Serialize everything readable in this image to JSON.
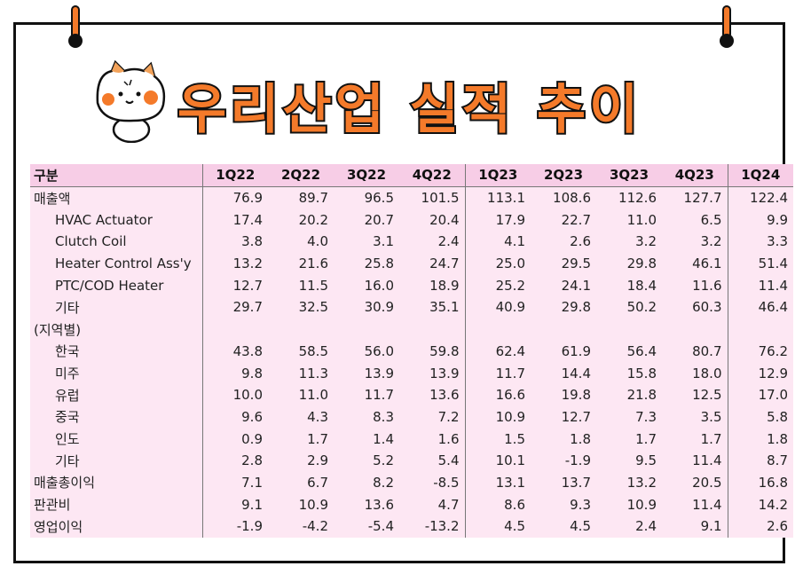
{
  "title": "우리산업 실적 추이",
  "table": {
    "header": [
      "구분",
      "1Q22",
      "2Q22",
      "3Q22",
      "4Q22",
      "1Q23",
      "2Q23",
      "3Q23",
      "4Q23",
      "1Q24"
    ],
    "rows": [
      {
        "label": "매출액",
        "indent": false,
        "values": [
          "76.9",
          "89.7",
          "96.5",
          "101.5",
          "113.1",
          "108.6",
          "112.6",
          "127.7",
          "122.4"
        ]
      },
      {
        "label": "HVAC Actuator",
        "indent": true,
        "values": [
          "17.4",
          "20.2",
          "20.7",
          "20.4",
          "17.9",
          "22.7",
          "11.0",
          "6.5",
          "9.9"
        ]
      },
      {
        "label": "Clutch Coil",
        "indent": true,
        "values": [
          "3.8",
          "4.0",
          "3.1",
          "2.4",
          "4.1",
          "2.6",
          "3.2",
          "3.2",
          "3.3"
        ]
      },
      {
        "label": "Heater Control Ass'y",
        "indent": true,
        "values": [
          "13.2",
          "21.6",
          "25.8",
          "24.7",
          "25.0",
          "29.5",
          "29.8",
          "46.1",
          "51.4"
        ]
      },
      {
        "label": "PTC/COD Heater",
        "indent": true,
        "values": [
          "12.7",
          "11.5",
          "16.0",
          "18.9",
          "25.2",
          "24.1",
          "18.4",
          "11.6",
          "11.4"
        ]
      },
      {
        "label": "기타",
        "indent": true,
        "values": [
          "29.7",
          "32.5",
          "30.9",
          "35.1",
          "40.9",
          "29.8",
          "50.2",
          "60.3",
          "46.4"
        ]
      },
      {
        "label": "(지역별)",
        "indent": false,
        "values": [
          "",
          "",
          "",
          "",
          "",
          "",
          "",
          "",
          ""
        ]
      },
      {
        "label": "한국",
        "indent": true,
        "values": [
          "43.8",
          "58.5",
          "56.0",
          "59.8",
          "62.4",
          "61.9",
          "56.4",
          "80.7",
          "76.2"
        ]
      },
      {
        "label": "미주",
        "indent": true,
        "values": [
          "9.8",
          "11.3",
          "13.9",
          "13.9",
          "11.7",
          "14.4",
          "15.8",
          "18.0",
          "12.9"
        ]
      },
      {
        "label": "유럽",
        "indent": true,
        "values": [
          "10.0",
          "11.0",
          "11.7",
          "13.6",
          "16.6",
          "19.8",
          "21.8",
          "12.5",
          "17.0"
        ]
      },
      {
        "label": "중국",
        "indent": true,
        "values": [
          "9.6",
          "4.3",
          "8.3",
          "7.2",
          "10.9",
          "12.7",
          "7.3",
          "3.5",
          "5.8"
        ]
      },
      {
        "label": "인도",
        "indent": true,
        "values": [
          "0.9",
          "1.7",
          "1.4",
          "1.6",
          "1.5",
          "1.8",
          "1.7",
          "1.7",
          "1.8"
        ]
      },
      {
        "label": "기타",
        "indent": true,
        "values": [
          "2.8",
          "2.9",
          "5.2",
          "5.4",
          "10.1",
          "-1.9",
          "9.5",
          "11.4",
          "8.7"
        ]
      },
      {
        "label": "매출총이익",
        "indent": false,
        "values": [
          "7.1",
          "6.7",
          "8.2",
          "-8.5",
          "13.1",
          "13.7",
          "13.2",
          "20.5",
          "16.8"
        ]
      },
      {
        "label": "판관비",
        "indent": false,
        "values": [
          "9.1",
          "10.9",
          "13.6",
          "4.7",
          "8.6",
          "9.3",
          "10.9",
          "11.4",
          "14.2"
        ]
      },
      {
        "label": "영업이익",
        "indent": false,
        "values": [
          "-1.9",
          "-4.2",
          "-5.4",
          "-13.2",
          "4.5",
          "4.5",
          "2.4",
          "9.1",
          "2.6"
        ]
      }
    ]
  },
  "colors": {
    "accent": "#f47a2a",
    "table_bg": "#fde7f3",
    "header_bg": "#f7cde6"
  }
}
